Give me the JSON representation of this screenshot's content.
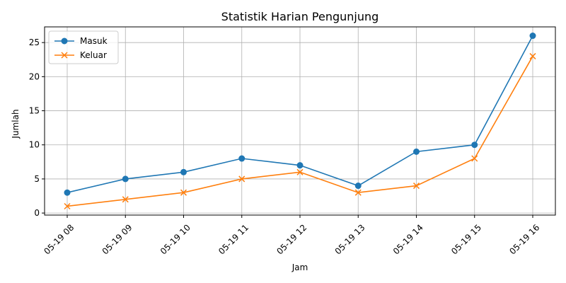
{
  "chart_data": {
    "type": "line",
    "title": "Statistik Harian Pengunjung",
    "xlabel": "Jam",
    "ylabel": "Jumlah",
    "categories": [
      "05-19 08",
      "05-19 09",
      "05-19 10",
      "05-19 11",
      "05-19 12",
      "05-19 13",
      "05-19 14",
      "05-19 15",
      "05-19 16"
    ],
    "ylim": [
      -0.3,
      27.3
    ],
    "yticks": [
      0,
      5,
      10,
      15,
      20,
      25
    ],
    "grid": true,
    "legend_position": "top-left",
    "series": [
      {
        "name": "Masuk",
        "marker": "circle",
        "color": "#1f77b4",
        "values": [
          3,
          5,
          6,
          8,
          7,
          4,
          9,
          10,
          26
        ]
      },
      {
        "name": "Keluar",
        "marker": "x",
        "color": "#ff7f0e",
        "values": [
          1,
          2,
          3,
          5,
          6,
          3,
          4,
          8,
          23
        ]
      }
    ]
  }
}
